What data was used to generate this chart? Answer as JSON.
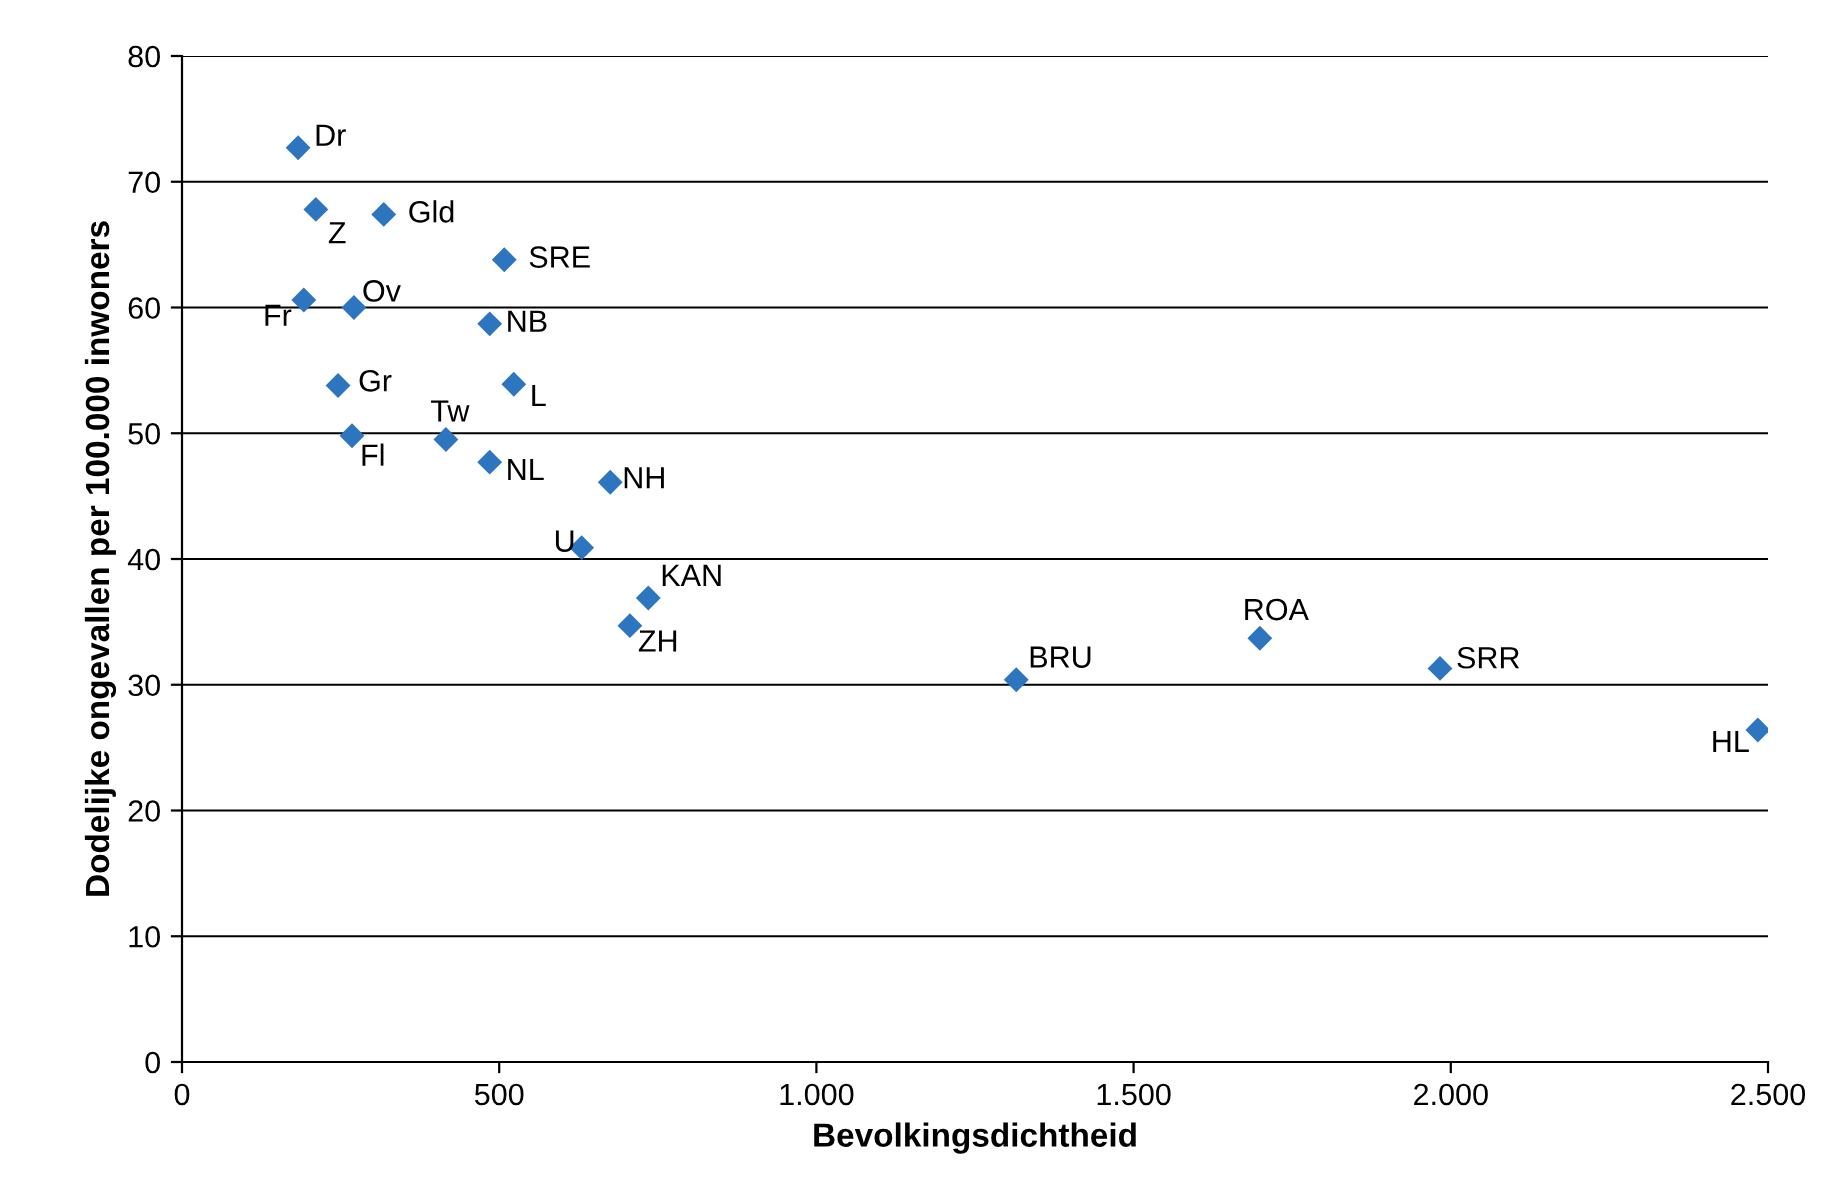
{
  "chart_data": {
    "type": "scatter",
    "xlabel": "Bevolkingsdichtheid",
    "ylabel": "Dodelijke ongevallen per 100.000 inwoners",
    "x": [
      183,
      211,
      318,
      508,
      192,
      271,
      485,
      246,
      523,
      268,
      416,
      485,
      675,
      630,
      735,
      706,
      1315,
      1699,
      1983,
      2484
    ],
    "series": [
      {
        "color": "#2e75c0",
        "values": [
          72.7,
          67.8,
          67.4,
          63.8,
          60.6,
          60.0,
          58.7,
          53.8,
          53.9,
          49.8,
          49.5,
          47.7,
          46.1,
          40.9,
          36.9,
          34.7,
          30.4,
          33.7,
          31.3,
          26.4
        ]
      }
    ],
    "annotations": [
      {
        "text": "Dr",
        "x": 183,
        "y": 72.7
      },
      {
        "text": "Z",
        "x": 211,
        "y": 67.8
      },
      {
        "text": "Gld",
        "x": 318,
        "y": 67.4
      },
      {
        "text": "SRE",
        "x": 508,
        "y": 63.8
      },
      {
        "text": "Fr",
        "x": 192,
        "y": 60.6
      },
      {
        "text": "Ov",
        "x": 271,
        "y": 60.0
      },
      {
        "text": "NB",
        "x": 485,
        "y": 58.7
      },
      {
        "text": "Gr",
        "x": 246,
        "y": 53.8
      },
      {
        "text": "L",
        "x": 523,
        "y": 53.9
      },
      {
        "text": "Fl",
        "x": 268,
        "y": 49.8
      },
      {
        "text": "Tw",
        "x": 416,
        "y": 49.5
      },
      {
        "text": "NL",
        "x": 485,
        "y": 47.7
      },
      {
        "text": "NH",
        "x": 675,
        "y": 46.1
      },
      {
        "text": "U",
        "x": 630,
        "y": 40.9
      },
      {
        "text": "KAN",
        "x": 735,
        "y": 36.9
      },
      {
        "text": "ZH",
        "x": 706,
        "y": 34.7
      },
      {
        "text": "BRU",
        "x": 1315,
        "y": 30.4
      },
      {
        "text": "ROA",
        "x": 1699,
        "y": 33.7
      },
      {
        "text": "SRR",
        "x": 1983,
        "y": 31.3
      },
      {
        "text": "HL",
        "x": 2484,
        "y": 26.4
      }
    ],
    "xlim": [
      0,
      2500
    ],
    "xticks": [
      0,
      500,
      {
        "value": 1000,
        "label": "1.000"
      },
      {
        "value": 1500,
        "label": "1.500"
      },
      {
        "value": 2000,
        "label": "2.000"
      },
      {
        "value": 2500,
        "label": "2.500"
      }
    ],
    "ylim": [
      0,
      80
    ],
    "yticks": [
      0,
      10,
      20,
      30,
      40,
      50,
      60,
      70,
      80
    ],
    "grid": "y",
    "marker": "diamond"
  }
}
